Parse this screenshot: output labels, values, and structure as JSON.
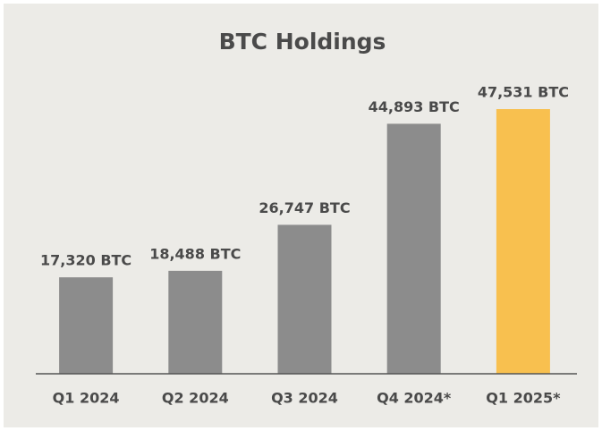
{
  "chart_data": {
    "type": "bar",
    "title": "BTC Holdings",
    "categories": [
      "Q1 2024",
      "Q2 2024",
      "Q3 2024",
      "Q4 2024*",
      "Q1 2025*"
    ],
    "values": [
      17320,
      18488,
      26747,
      44893,
      47531
    ],
    "value_labels": [
      "17,320 BTC",
      "18,488 BTC",
      "26,747 BTC",
      "44,893 BTC",
      "47,531 BTC"
    ],
    "colors": [
      "#8c8c8c",
      "#8c8c8c",
      "#8c8c8c",
      "#8c8c8c",
      "#f8c04f"
    ]
  }
}
